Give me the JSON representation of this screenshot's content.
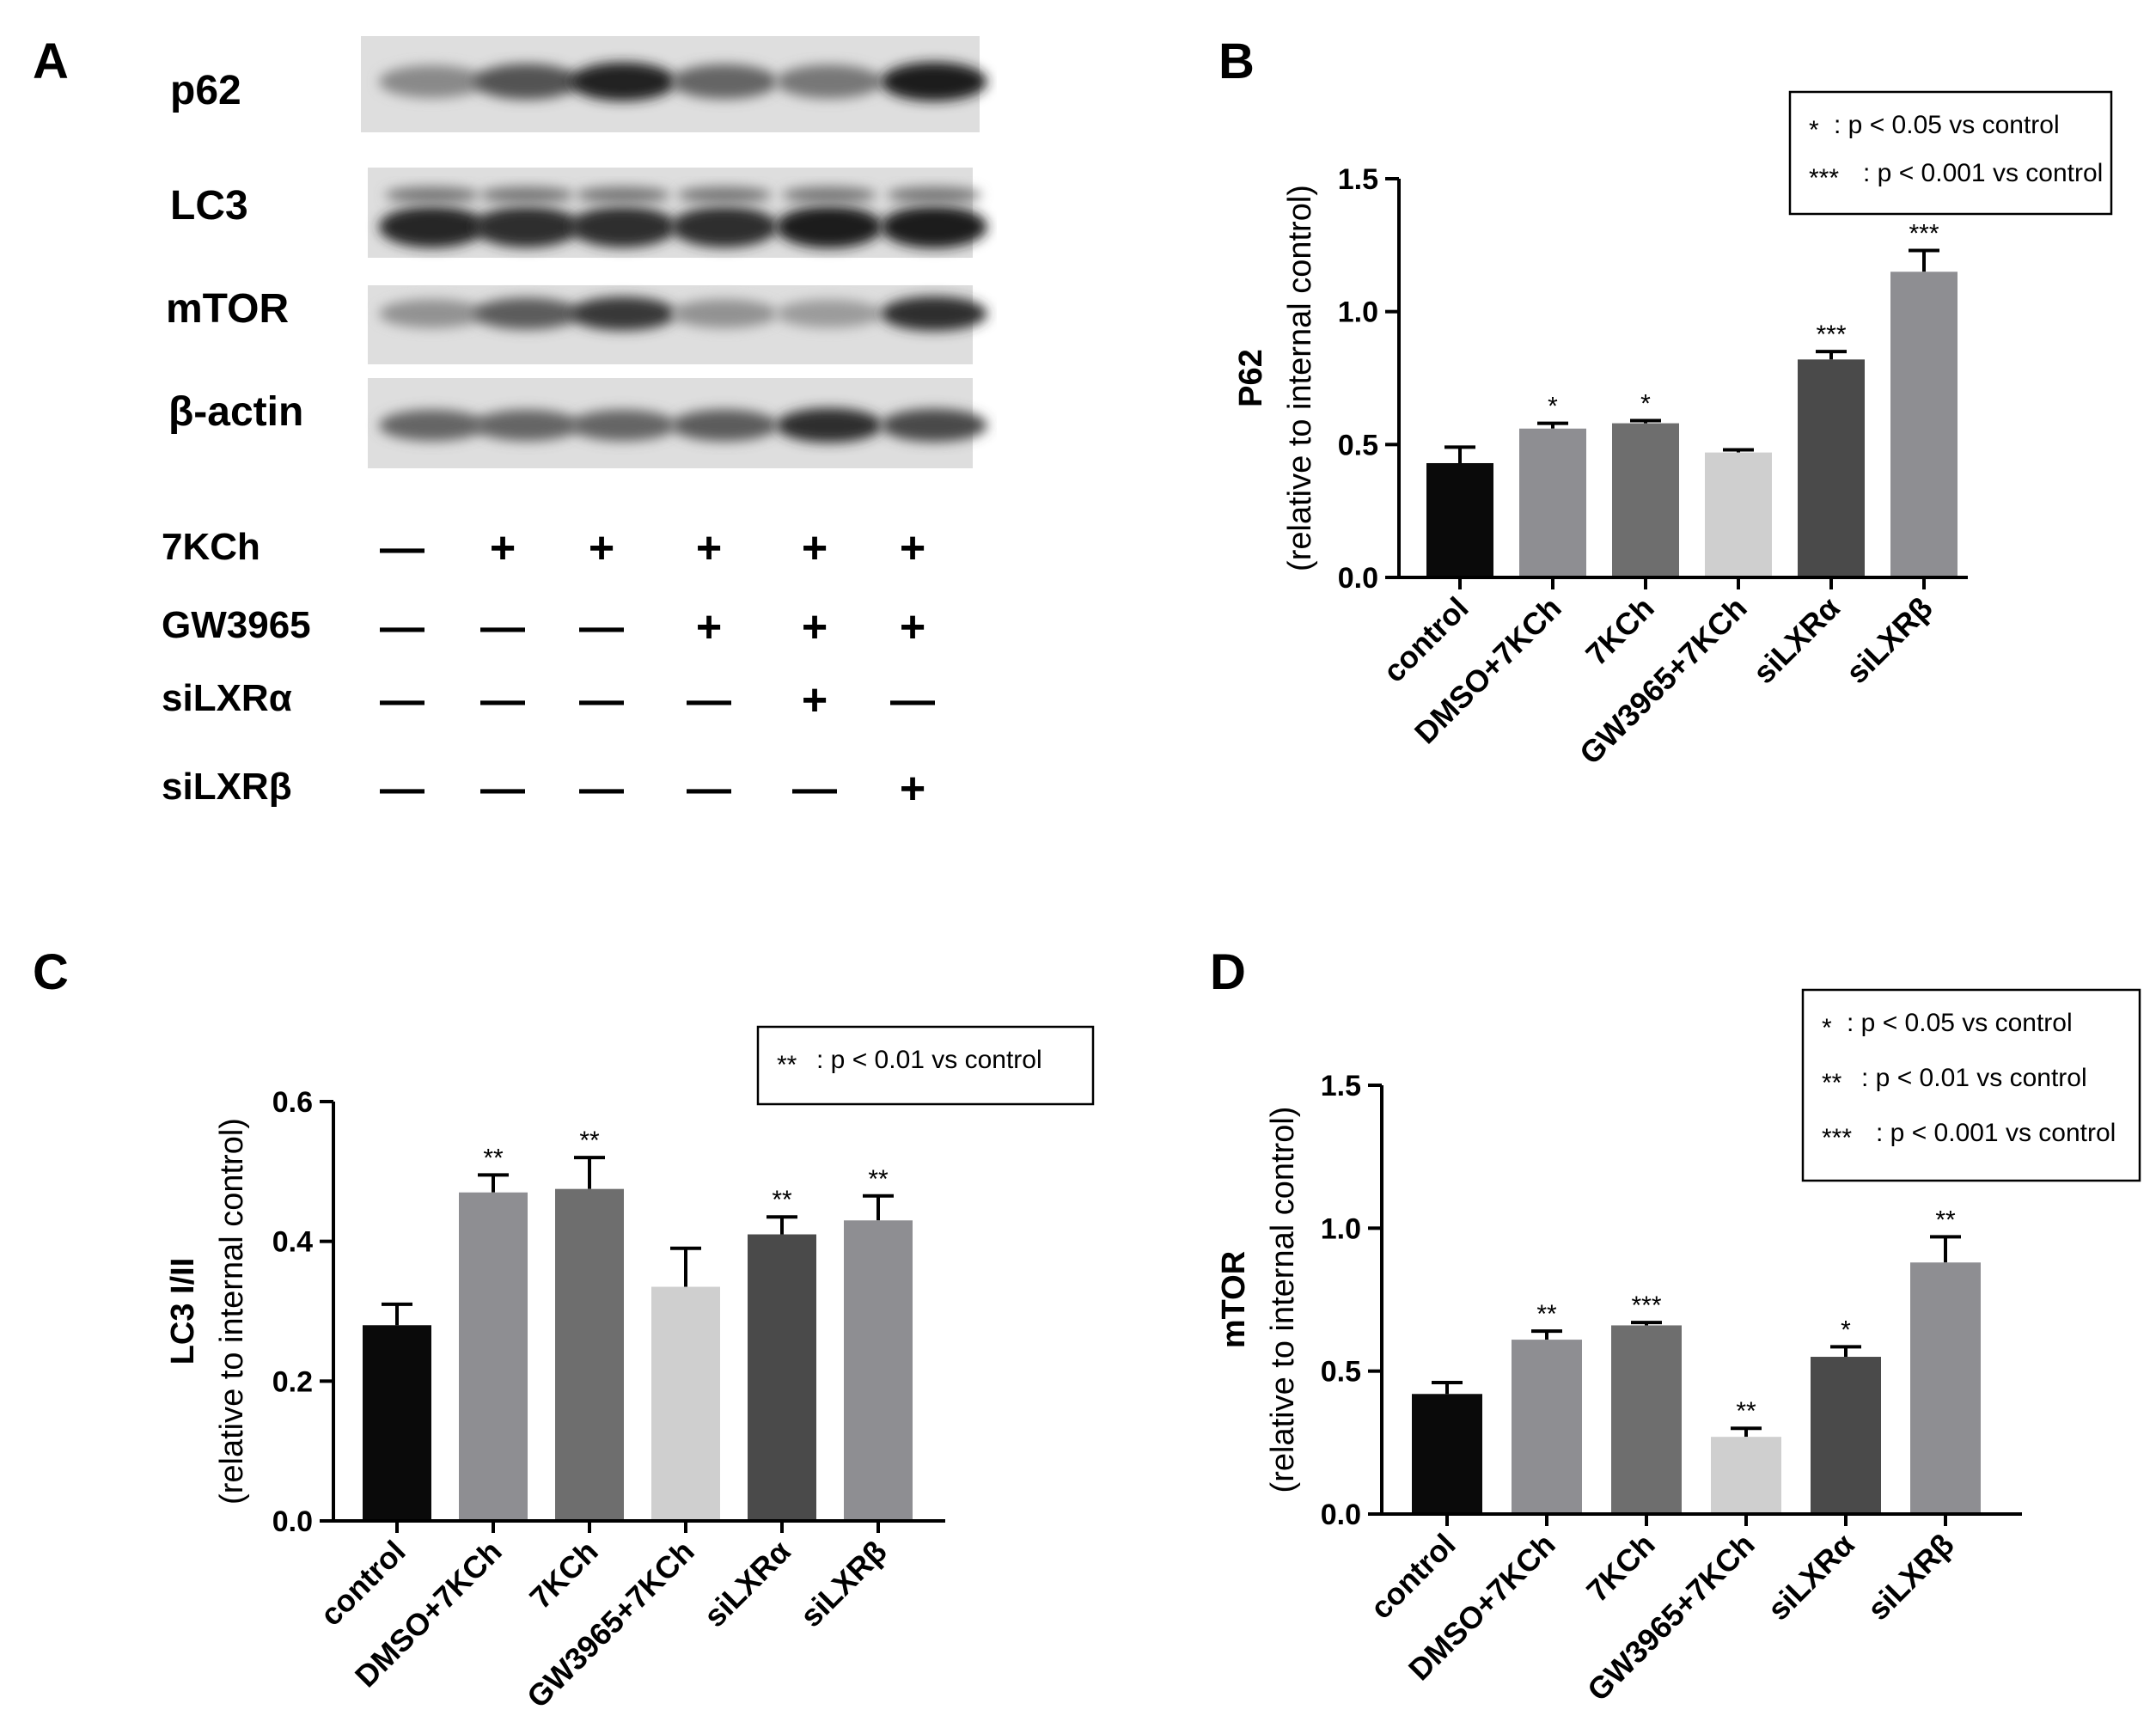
{
  "panels": {
    "a": "A",
    "b": "B",
    "c": "C",
    "d": "D"
  },
  "blot": {
    "bands": [
      {
        "name": "p62",
        "intensity": [
          0.35,
          0.65,
          0.92,
          0.55,
          0.45,
          0.95
        ]
      },
      {
        "name": "LC3",
        "intensity": [
          0.9,
          0.85,
          0.85,
          0.85,
          0.95,
          0.95
        ]
      },
      {
        "name": "mTOR",
        "intensity": [
          0.3,
          0.6,
          0.8,
          0.3,
          0.25,
          0.85
        ]
      },
      {
        "name": "β-actin",
        "intensity": [
          0.55,
          0.55,
          0.55,
          0.6,
          0.85,
          0.7
        ]
      }
    ],
    "treatments": [
      {
        "name": "7KCh",
        "signs": [
          "—",
          "+",
          "+",
          "+",
          "+",
          "+"
        ]
      },
      {
        "name": "GW3965",
        "signs": [
          "—",
          "—",
          "—",
          "+",
          "+",
          "+"
        ]
      },
      {
        "name": "siLXRα",
        "signs": [
          "—",
          "—",
          "—",
          "—",
          "+",
          "—"
        ]
      },
      {
        "name": "siLXRβ",
        "signs": [
          "—",
          "—",
          "—",
          "—",
          "—",
          "+"
        ]
      }
    ]
  },
  "chart_data": [
    {
      "panel": "B",
      "type": "bar",
      "categories": [
        "control",
        "DMSO+7KCh",
        "7KCh",
        "GW3965+7KCh",
        "siLXRα",
        "siLXRβ"
      ],
      "values": [
        0.43,
        0.56,
        0.58,
        0.47,
        0.82,
        1.15
      ],
      "errors": [
        0.06,
        0.02,
        0.01,
        0.01,
        0.03,
        0.08
      ],
      "significance": [
        "",
        "*",
        "*",
        "",
        "***",
        "***"
      ],
      "colors": [
        "#0a0a0a",
        "#8e8e92",
        "#6e6e6e",
        "#cfcfcf",
        "#4a4a4a",
        "#8e8e92"
      ],
      "ylabel": "P62",
      "ylabel2": "(relative to internal control)",
      "ylim": [
        0,
        1.5
      ],
      "yticks": [
        "0.0",
        "0.5",
        "1.0",
        "1.5"
      ],
      "legend": [
        {
          "mark": "*",
          "text": ": p < 0.05 vs control"
        },
        {
          "mark": "***",
          "text": ": p < 0.001 vs control"
        }
      ]
    },
    {
      "panel": "C",
      "type": "bar",
      "categories": [
        "control",
        "DMSO+7KCh",
        "7KCh",
        "GW3965+7KCh",
        "siLXRα",
        "siLXRβ"
      ],
      "values": [
        0.28,
        0.47,
        0.475,
        0.335,
        0.41,
        0.43
      ],
      "errors": [
        0.03,
        0.025,
        0.045,
        0.055,
        0.025,
        0.035
      ],
      "significance": [
        "",
        "**",
        "**",
        "",
        "**",
        "**"
      ],
      "colors": [
        "#0a0a0a",
        "#8e8e92",
        "#6e6e6e",
        "#cfcfcf",
        "#4a4a4a",
        "#8e8e92"
      ],
      "ylabel": "LC3 I/II",
      "ylabel2": "(relative to internal control)",
      "ylim": [
        0,
        0.6
      ],
      "yticks": [
        "0.0",
        "0.2",
        "0.4",
        "0.6"
      ],
      "legend": [
        {
          "mark": "**",
          "text": ": p < 0.01 vs control"
        }
      ]
    },
    {
      "panel": "D",
      "type": "bar",
      "categories": [
        "control",
        "DMSO+7KCh",
        "7KCh",
        "GW3965+7KCh",
        "siLXRα",
        "siLXRβ"
      ],
      "values": [
        0.42,
        0.61,
        0.66,
        0.27,
        0.55,
        0.88
      ],
      "errors": [
        0.04,
        0.03,
        0.01,
        0.03,
        0.035,
        0.09
      ],
      "significance": [
        "",
        "**",
        "***",
        "**",
        "*",
        "**"
      ],
      "colors": [
        "#0a0a0a",
        "#8e8e92",
        "#6e6e6e",
        "#cfcfcf",
        "#4a4a4a",
        "#8e8e92"
      ],
      "ylabel": "mTOR",
      "ylabel2": "(relative to internal control)",
      "ylim": [
        0,
        1.5
      ],
      "yticks": [
        "0.0",
        "0.5",
        "1.0",
        "1.5"
      ],
      "legend": [
        {
          "mark": "*",
          "text": ": p < 0.05 vs control"
        },
        {
          "mark": "**",
          "text": ": p < 0.01 vs control"
        },
        {
          "mark": "***",
          "text": ": p < 0.001 vs control"
        }
      ]
    }
  ]
}
